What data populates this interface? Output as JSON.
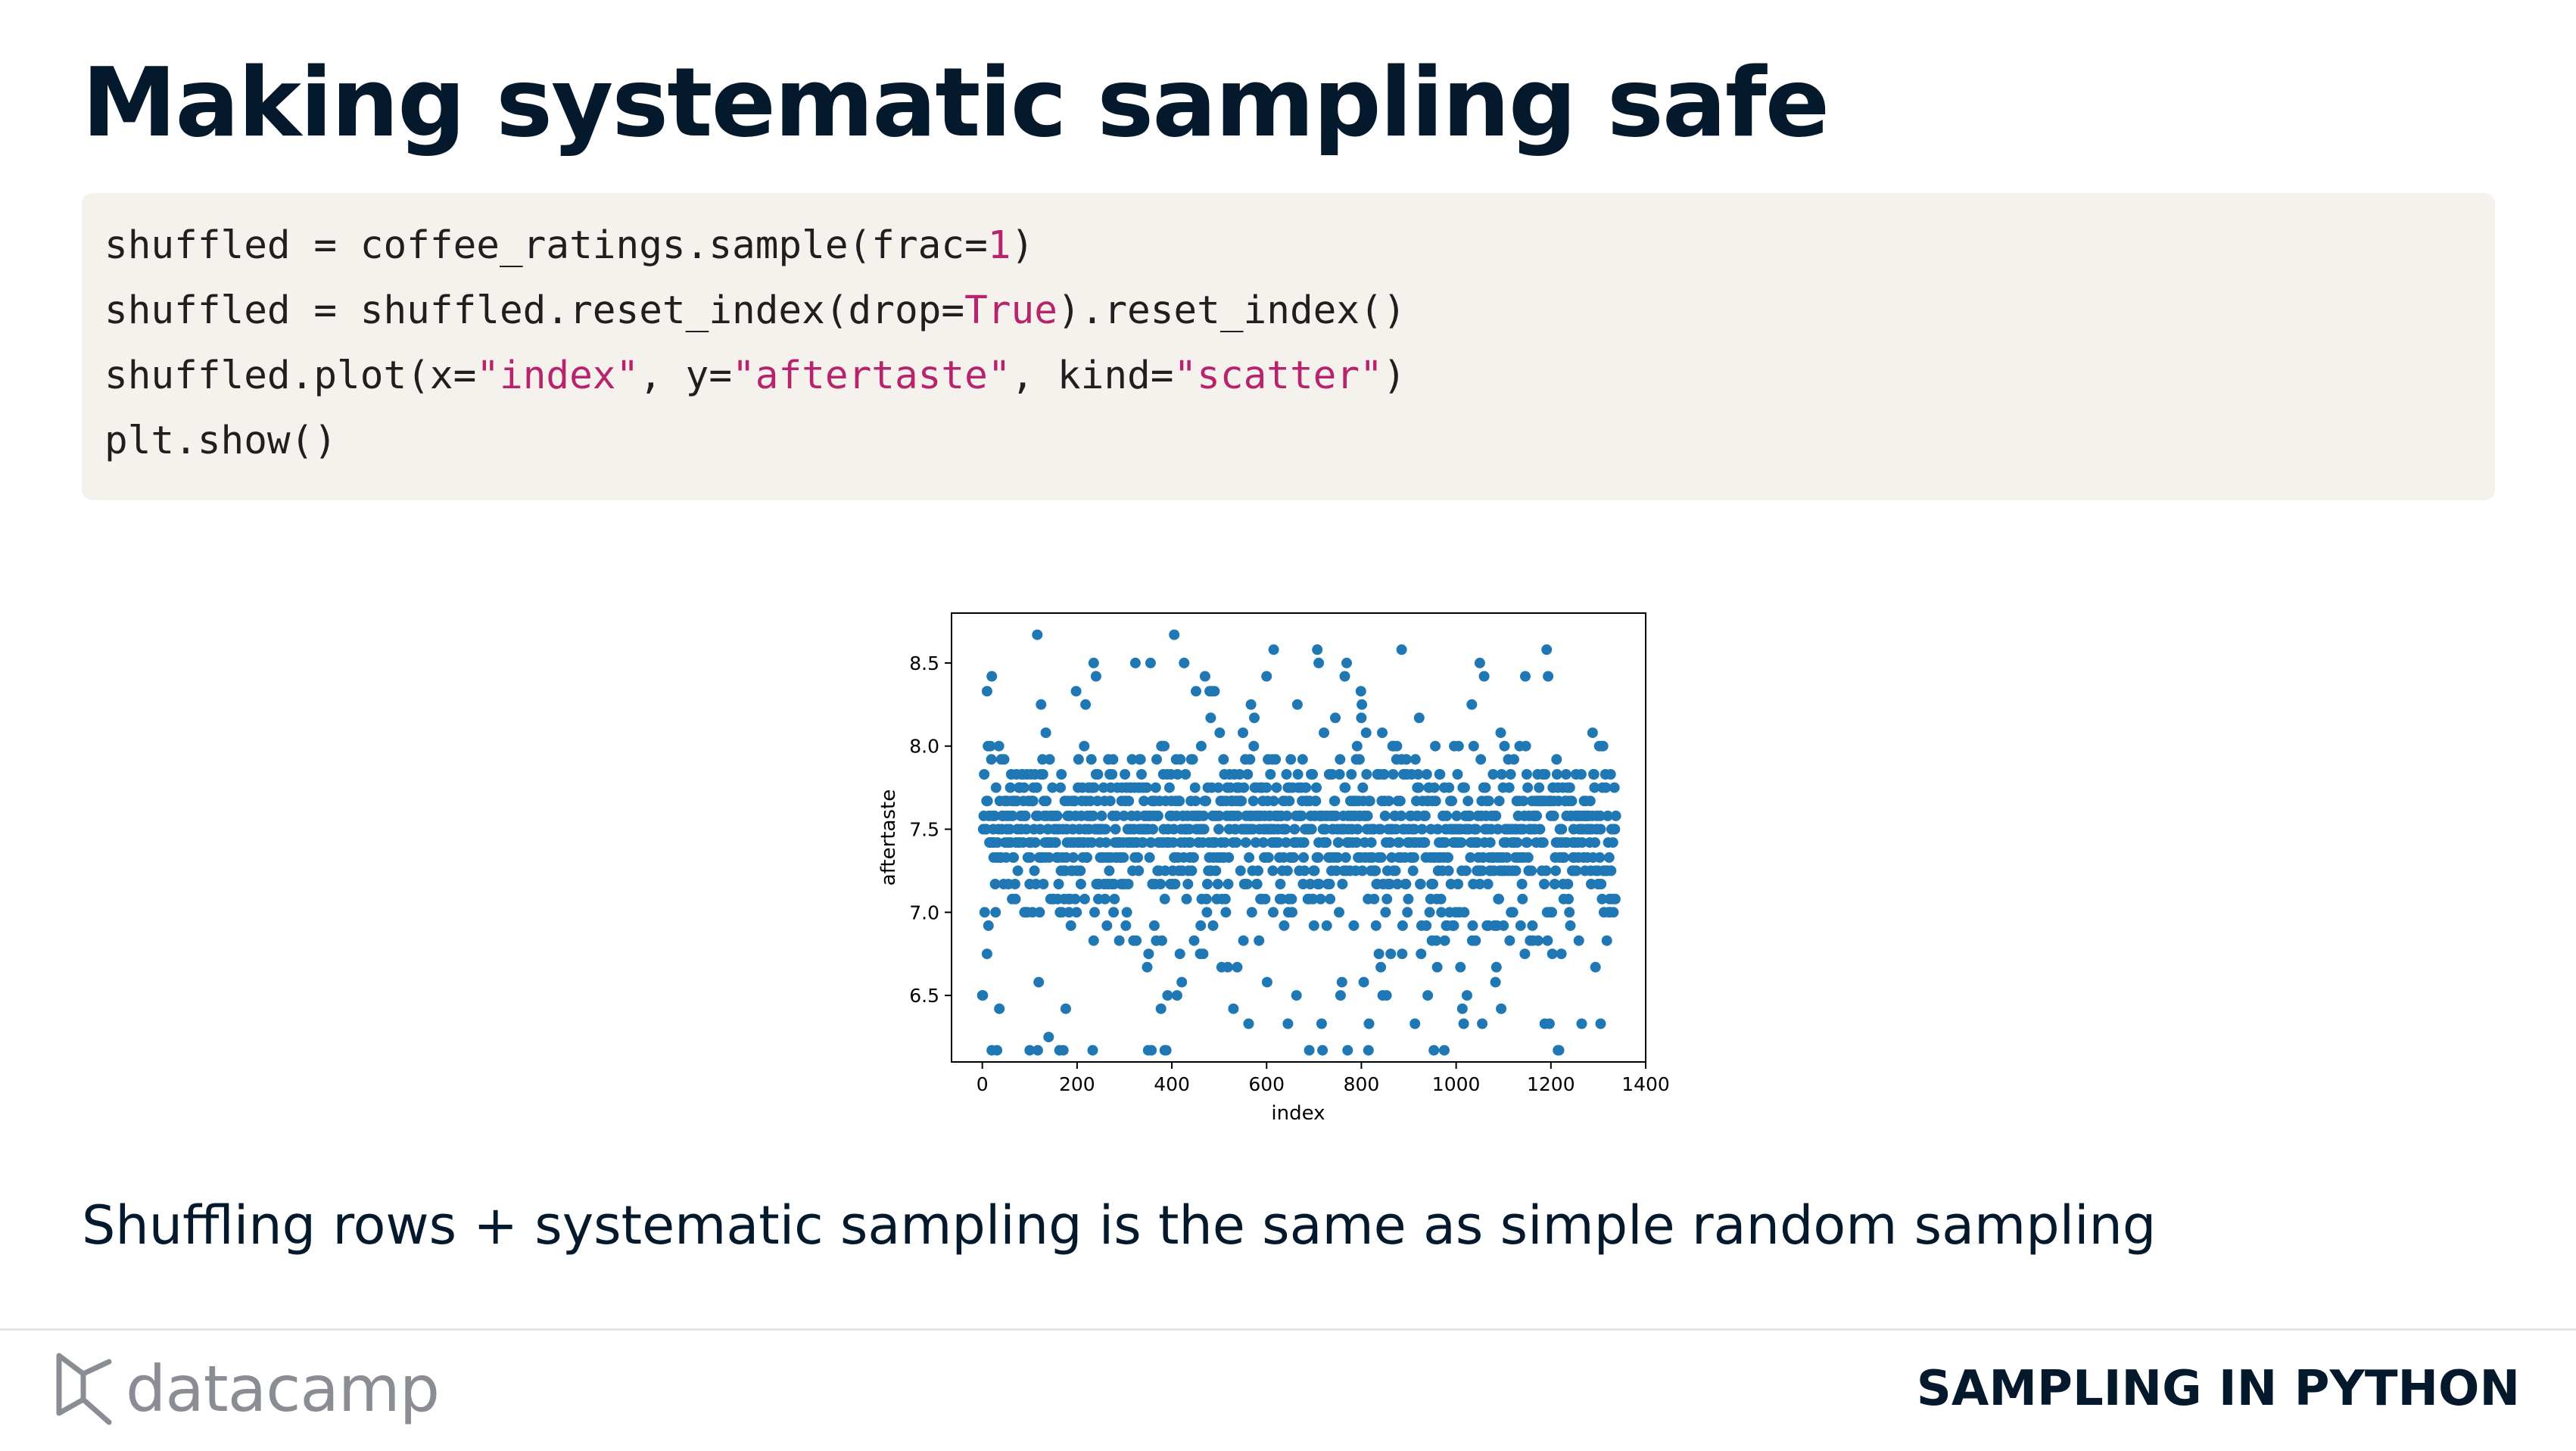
{
  "slide": {
    "title": "Making systematic sampling safe",
    "subtitle": "Shuffling rows + systematic sampling is the same as simple random sampling"
  },
  "code": {
    "lines": [
      [
        {
          "t": "shuffled = coffee_ratings.sample(frac="
        },
        {
          "t": "1",
          "lit": true
        },
        {
          "t": ")"
        }
      ],
      [
        {
          "t": "shuffled = shuffled.reset_index(drop="
        },
        {
          "t": "True",
          "lit": true
        },
        {
          "t": ").reset_index()"
        }
      ],
      [
        {
          "t": "shuffled.plot(x="
        },
        {
          "t": "\"index\"",
          "lit": true
        },
        {
          "t": ", y="
        },
        {
          "t": "\"aftertaste\"",
          "lit": true
        },
        {
          "t": ", kind="
        },
        {
          "t": "\"scatter\"",
          "lit": true
        },
        {
          "t": ")"
        }
      ],
      [
        {
          "t": "plt.show()"
        }
      ]
    ]
  },
  "chart_data": {
    "type": "scatter",
    "xlabel": "index",
    "ylabel": "aftertaste",
    "xlim": [
      -65,
      1400
    ],
    "ylim": [
      6.1,
      8.8
    ],
    "xticks": [
      0,
      200,
      400,
      600,
      800,
      1000,
      1200,
      1400
    ],
    "yticks": [
      6.5,
      7.0,
      7.5,
      8.0,
      8.5
    ],
    "marker_color": "#1f77b4",
    "n_points": 1338,
    "y_levels": [
      6.17,
      6.33,
      6.42,
      6.5,
      6.58,
      6.67,
      6.75,
      6.83,
      6.92,
      7.0,
      7.08,
      7.17,
      7.25,
      7.33,
      7.42,
      7.5,
      7.58,
      7.67,
      7.75,
      7.83,
      7.92,
      8.0,
      8.08,
      8.17,
      8.25,
      8.33,
      8.42,
      8.5,
      8.58,
      8.67
    ],
    "level_weights": [
      10,
      7,
      5,
      6,
      6,
      10,
      12,
      22,
      30,
      45,
      55,
      70,
      90,
      120,
      150,
      170,
      150,
      120,
      95,
      70,
      40,
      25,
      10,
      5,
      4,
      3,
      4,
      4,
      3,
      1
    ],
    "highlights": [
      {
        "x": 10,
        "y": 8.33
      },
      {
        "x": 235,
        "y": 8.5
      },
      {
        "x": 240,
        "y": 8.42
      },
      {
        "x": 355,
        "y": 8.5
      },
      {
        "x": 405,
        "y": 8.67
      },
      {
        "x": 485,
        "y": 8.33
      },
      {
        "x": 600,
        "y": 8.42
      },
      {
        "x": 615,
        "y": 8.58
      },
      {
        "x": 710,
        "y": 8.5
      },
      {
        "x": 765,
        "y": 8.42
      },
      {
        "x": 885,
        "y": 8.58
      },
      {
        "x": 1050,
        "y": 8.5
      },
      {
        "x": 20,
        "y": 6.17
      },
      {
        "x": 100,
        "y": 6.17
      },
      {
        "x": 350,
        "y": 6.17
      },
      {
        "x": 385,
        "y": 6.17
      },
      {
        "x": 690,
        "y": 6.17
      },
      {
        "x": 815,
        "y": 6.17
      },
      {
        "x": 975,
        "y": 6.17
      },
      {
        "x": 1215,
        "y": 6.17
      },
      {
        "x": 140,
        "y": 6.25
      },
      {
        "x": 1305,
        "y": 6.33
      },
      {
        "x": 645,
        "y": 6.33
      },
      {
        "x": 1055,
        "y": 6.33
      }
    ],
    "grid": false,
    "legend": "none"
  },
  "footer": {
    "logo_text": "datacamp",
    "course": "SAMPLING IN PYTHON"
  }
}
